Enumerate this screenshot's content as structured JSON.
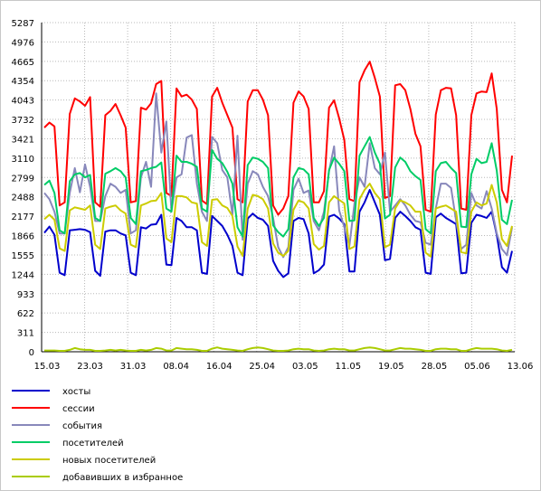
{
  "chart_data": {
    "type": "line",
    "yticks": [
      0,
      311,
      622,
      933,
      1244,
      1555,
      1866,
      2177,
      2488,
      2799,
      3110,
      3421,
      3732,
      4043,
      4354,
      4665,
      4976,
      5287
    ],
    "ylim": [
      0,
      5287
    ],
    "xticks": [
      "15.03",
      "23.03",
      "31.03",
      "08.04",
      "16.04",
      "25.04",
      "03.05",
      "11.05",
      "19.05",
      "28.05",
      "05.06",
      "13.06"
    ],
    "grid": true,
    "legend_position": "bottom",
    "series": [
      {
        "name": "хосты",
        "color": "#0000cc",
        "values": [
          1910,
          2010,
          1880,
          1270,
          1230,
          1950,
          1960,
          1970,
          1960,
          1920,
          1300,
          1220,
          1930,
          1950,
          1950,
          1900,
          1870,
          1270,
          1230,
          2000,
          1980,
          2040,
          2050,
          2200,
          1400,
          1390,
          2150,
          2100,
          2000,
          2000,
          1950,
          1270,
          1250,
          2180,
          2100,
          2020,
          1880,
          1700,
          1270,
          1230,
          2140,
          2220,
          2150,
          2120,
          2020,
          1460,
          1300,
          1200,
          1260,
          2100,
          2150,
          2130,
          1900,
          1260,
          1310,
          1400,
          2170,
          2200,
          2140,
          2050,
          1290,
          1290,
          2250,
          2400,
          2600,
          2400,
          2200,
          1470,
          1490,
          2150,
          2250,
          2180,
          2100,
          2000,
          1960,
          1270,
          1250,
          2160,
          2220,
          2150,
          2100,
          2050,
          1260,
          1270,
          2070,
          2200,
          2180,
          2150,
          2250,
          1880,
          1360,
          1270,
          1620
        ]
      },
      {
        "name": "сессии",
        "color": "#ff0000",
        "values": [
          3600,
          3680,
          3620,
          2350,
          2400,
          3820,
          4070,
          4020,
          3950,
          4090,
          2400,
          2330,
          3800,
          3870,
          3980,
          3800,
          3600,
          2400,
          2420,
          3920,
          3890,
          3990,
          4300,
          4350,
          2550,
          2500,
          4230,
          4100,
          4130,
          4050,
          3900,
          2430,
          2370,
          4100,
          4240,
          4000,
          3800,
          3600,
          2450,
          2400,
          4020,
          4200,
          4200,
          4050,
          3800,
          2350,
          2200,
          2300,
          2500,
          4000,
          4180,
          4100,
          3900,
          2400,
          2400,
          2580,
          3920,
          4040,
          3750,
          3400,
          2450,
          2420,
          4330,
          4520,
          4660,
          4400,
          4100,
          2470,
          2500,
          4280,
          4300,
          4200,
          3900,
          3500,
          3300,
          2280,
          2250,
          3810,
          4200,
          4240,
          4230,
          3800,
          2300,
          2280,
          3800,
          4150,
          4180,
          4170,
          4470,
          3900,
          2600,
          2400,
          3150
        ]
      },
      {
        "name": "события",
        "color": "#8888bb",
        "values": [
          2550,
          2450,
          2250,
          1900,
          1900,
          2550,
          2950,
          2560,
          3010,
          2650,
          2100,
          2100,
          2500,
          2700,
          2650,
          2550,
          2600,
          1900,
          1950,
          2800,
          3050,
          2650,
          4150,
          3200,
          3700,
          2250,
          2800,
          2850,
          3440,
          3480,
          2700,
          2250,
          2100,
          3450,
          3350,
          2920,
          2800,
          2200,
          3470,
          1800,
          2700,
          2900,
          2850,
          2650,
          2500,
          2150,
          1680,
          1520,
          1680,
          2600,
          2780,
          2550,
          2590,
          2100,
          1950,
          2250,
          2900,
          3300,
          2270,
          2000,
          1700,
          2380,
          2800,
          2650,
          3350,
          2950,
          2850,
          3200,
          2250,
          2350,
          2450,
          2350,
          2200,
          2100,
          2080,
          1750,
          1720,
          2300,
          2700,
          2700,
          2630,
          2100,
          1650,
          1720,
          2550,
          2350,
          2300,
          2580,
          2300,
          1900,
          1650,
          1550,
          2000
        ]
      },
      {
        "name": "посетителей",
        "color": "#00cc66",
        "values": [
          2680,
          2750,
          2550,
          1950,
          1900,
          2740,
          2850,
          2870,
          2800,
          2840,
          2150,
          2100,
          2860,
          2900,
          2950,
          2900,
          2800,
          2150,
          2050,
          2900,
          2920,
          2950,
          2970,
          3040,
          2300,
          2250,
          3150,
          3050,
          3050,
          3020,
          2970,
          2300,
          2250,
          3240,
          3100,
          3030,
          2890,
          2700,
          2000,
          1850,
          3000,
          3120,
          3100,
          3050,
          2950,
          2030,
          1920,
          1850,
          1970,
          2800,
          2950,
          2930,
          2850,
          2150,
          2020,
          2150,
          2920,
          3120,
          3020,
          2900,
          2100,
          2110,
          3150,
          3300,
          3450,
          3200,
          3020,
          2140,
          2200,
          2960,
          3120,
          3050,
          2900,
          2820,
          2760,
          1970,
          1900,
          2900,
          3030,
          3050,
          2950,
          2870,
          2010,
          2000,
          2850,
          3100,
          3030,
          3050,
          3350,
          2910,
          2120,
          2050,
          2440
        ]
      },
      {
        "name": "новых посетителей",
        "color": "#cccc00",
        "values": [
          2130,
          2200,
          2120,
          1660,
          1620,
          2270,
          2320,
          2300,
          2280,
          2350,
          1720,
          1650,
          2300,
          2330,
          2350,
          2270,
          2220,
          1720,
          1680,
          2350,
          2380,
          2420,
          2430,
          2550,
          1820,
          1760,
          2500,
          2500,
          2480,
          2400,
          2380,
          1760,
          1700,
          2440,
          2450,
          2350,
          2310,
          2180,
          1690,
          1540,
          2300,
          2520,
          2500,
          2450,
          2300,
          1740,
          1590,
          1540,
          1620,
          2280,
          2430,
          2400,
          2300,
          1730,
          1640,
          1700,
          2400,
          2500,
          2440,
          2380,
          1650,
          1690,
          2450,
          2600,
          2700,
          2550,
          2450,
          1680,
          1720,
          2300,
          2430,
          2400,
          2350,
          2250,
          2250,
          1590,
          1530,
          2300,
          2330,
          2350,
          2300,
          2250,
          1600,
          1580,
          2250,
          2400,
          2350,
          2380,
          2680,
          2400,
          1810,
          1700,
          2020
        ]
      },
      {
        "name": "добавивших в избранное",
        "color": "#aacc00",
        "values": [
          20,
          20,
          20,
          15,
          15,
          30,
          60,
          40,
          30,
          30,
          15,
          15,
          20,
          30,
          20,
          30,
          20,
          15,
          15,
          30,
          20,
          30,
          60,
          50,
          20,
          20,
          60,
          50,
          40,
          40,
          30,
          15,
          15,
          50,
          70,
          50,
          40,
          30,
          20,
          15,
          40,
          60,
          70,
          60,
          40,
          20,
          15,
          15,
          20,
          40,
          50,
          40,
          40,
          20,
          15,
          20,
          40,
          50,
          40,
          40,
          20,
          20,
          40,
          60,
          70,
          60,
          40,
          20,
          20,
          40,
          60,
          50,
          50,
          40,
          30,
          15,
          15,
          40,
          50,
          50,
          40,
          40,
          15,
          15,
          40,
          60,
          50,
          50,
          50,
          40,
          20,
          15,
          30
        ]
      }
    ]
  }
}
